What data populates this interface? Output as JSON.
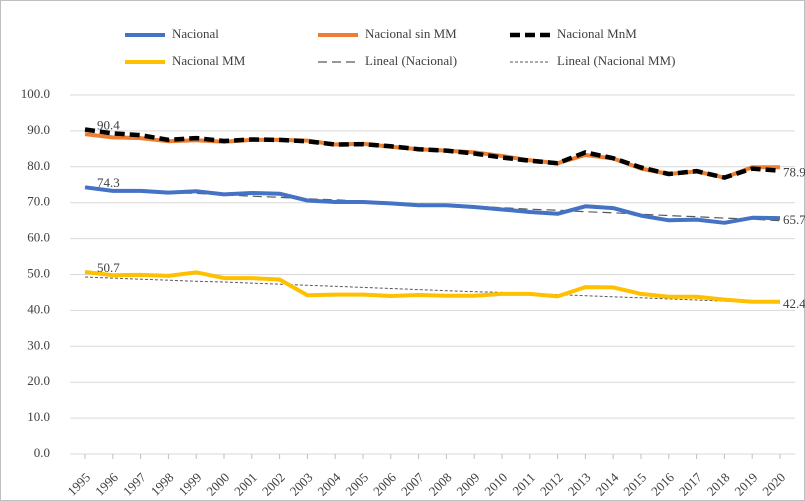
{
  "chart_data": {
    "type": "line",
    "categories": [
      "1995",
      "1996",
      "1997",
      "1998",
      "1999",
      "2000",
      "2001",
      "2002",
      "2003",
      "2004",
      "2005",
      "2006",
      "2007",
      "2008",
      "2009",
      "2010",
      "2011",
      "2012",
      "2013",
      "2014",
      "2015",
      "2016",
      "2017",
      "2018",
      "2019",
      "2020"
    ],
    "ylim": [
      0,
      100
    ],
    "yticks": [
      {
        "value": 0,
        "label": "0.0"
      },
      {
        "value": 10,
        "label": "10.0"
      },
      {
        "value": 20,
        "label": "20.0"
      },
      {
        "value": 30,
        "label": "30.0"
      },
      {
        "value": 40,
        "label": "40.0"
      },
      {
        "value": 50,
        "label": "50.0"
      },
      {
        "value": 60,
        "label": "60.0"
      },
      {
        "value": 70,
        "label": "70.0"
      },
      {
        "value": 80,
        "label": "80.0"
      },
      {
        "value": 90,
        "label": "90.0"
      },
      {
        "value": 100,
        "label": "100.0"
      }
    ],
    "grid": true,
    "legend": "top",
    "series": [
      {
        "name": "Nacional",
        "color": "#4472c4",
        "style": "thick",
        "labels_at": "ends",
        "values": [
          74.3,
          73.3,
          73.3,
          72.8,
          73.2,
          72.3,
          72.7,
          72.5,
          70.6,
          70.2,
          70.2,
          69.8,
          69.3,
          69.3,
          68.8,
          68.1,
          67.4,
          66.9,
          69.0,
          68.5,
          66.4,
          65.1,
          65.3,
          64.4,
          65.8,
          65.7
        ]
      },
      {
        "name": "Nacional sin MM",
        "color": "#ed7d31",
        "style": "thick",
        "labels_at": "none",
        "values": [
          89.1,
          88.2,
          88.0,
          87.1,
          87.4,
          87.0,
          87.5,
          87.5,
          87.3,
          86.2,
          86.4,
          85.6,
          84.9,
          84.5,
          84.0,
          83.0,
          81.8,
          81.0,
          83.3,
          82.3,
          79.5,
          78.0,
          78.7,
          77.0,
          79.9,
          79.9
        ]
      },
      {
        "name": "Nacional MnM",
        "color": "#000000",
        "style": "thick-dash",
        "labels_at": "ends",
        "values": [
          90.4,
          89.3,
          88.8,
          87.5,
          88.0,
          87.2,
          87.6,
          87.5,
          87.1,
          86.2,
          86.3,
          85.7,
          84.9,
          84.5,
          83.7,
          82.6,
          81.7,
          81.0,
          84.0,
          82.4,
          79.8,
          78.0,
          78.8,
          77.0,
          79.5,
          78.9
        ]
      },
      {
        "name": "Nacional MM",
        "color": "#ffc000",
        "style": "thick",
        "labels_at": "ends",
        "values": [
          50.7,
          49.8,
          49.9,
          49.6,
          50.6,
          49.0,
          49.0,
          48.6,
          44.2,
          44.4,
          44.4,
          44.0,
          44.3,
          44.1,
          44.1,
          44.6,
          44.6,
          43.9,
          46.5,
          46.4,
          44.6,
          43.8,
          43.8,
          43.0,
          42.4,
          42.4
        ]
      },
      {
        "name": "Lineal (Nacional)",
        "color": "#595959",
        "style": "dash",
        "labels_at": "none",
        "values": [
          74.0,
          73.6,
          73.3,
          72.9,
          72.6,
          72.2,
          71.8,
          71.5,
          71.1,
          70.8,
          70.4,
          70.0,
          69.7,
          69.3,
          69.0,
          68.6,
          68.2,
          67.9,
          67.5,
          67.2,
          66.8,
          66.4,
          66.1,
          65.7,
          65.4,
          65.0
        ]
      },
      {
        "name": "Lineal (Nacional MM)",
        "color": "#595959",
        "style": "dotted",
        "labels_at": "none",
        "values": [
          49.3,
          49.0,
          48.7,
          48.4,
          48.1,
          47.9,
          47.6,
          47.3,
          47.0,
          46.7,
          46.4,
          46.1,
          45.8,
          45.5,
          45.2,
          45.0,
          44.7,
          44.4,
          44.1,
          43.8,
          43.5,
          43.2,
          42.9,
          42.6,
          42.3,
          42.0
        ]
      }
    ]
  }
}
